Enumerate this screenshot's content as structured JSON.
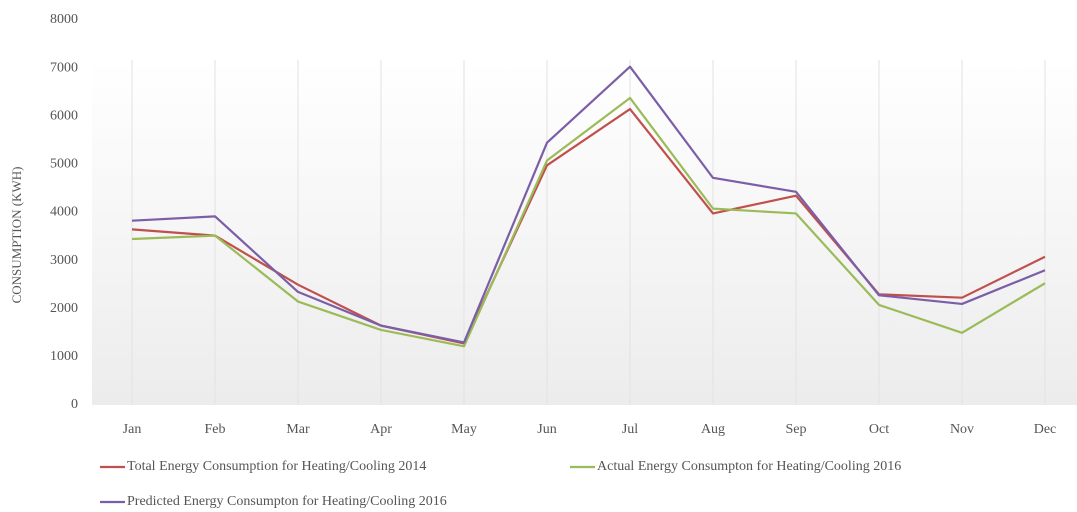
{
  "chart_data": {
    "type": "line",
    "y_label": "CONSUMPTION (KWH)",
    "categories": [
      "Jan",
      "Feb",
      "Mar",
      "Apr",
      "May",
      "Jun",
      "Jul",
      "Aug",
      "Sep",
      "Oct",
      "Nov",
      "Dec"
    ],
    "series": [
      {
        "name": "Total Energy Consumption for Heating/Cooling 2014",
        "color": "#c0504d",
        "values": [
          3650,
          3520,
          2500,
          1650,
          1280,
          4980,
          6150,
          3980,
          4350,
          2300,
          2230,
          3080
        ]
      },
      {
        "name": "Actual Energy Consumpton for Heating/Cooling 2016",
        "color": "#9bbb59",
        "values": [
          3450,
          3520,
          2150,
          1560,
          1220,
          5080,
          6380,
          4080,
          3980,
          2080,
          1500,
          2530
        ]
      },
      {
        "name": "Predicted Energy Consumpton for Heating/Cooling 2016",
        "color": "#7b5ea7",
        "values": [
          3830,
          3920,
          2350,
          1650,
          1300,
          5450,
          7030,
          4720,
          4430,
          2280,
          2100,
          2800
        ]
      }
    ],
    "ylim": [
      0,
      8000
    ],
    "yticks": [
      0,
      1000,
      2000,
      3000,
      4000,
      5000,
      6000,
      7000,
      8000
    ],
    "grid": false,
    "legend": "bottom"
  }
}
